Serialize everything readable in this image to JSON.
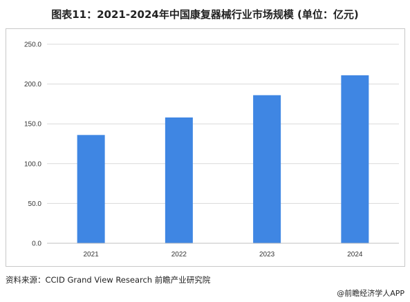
{
  "title": "图表11：2021-2024年中国康复器械行业市场规模 (单位：亿元)",
  "source": "资料来源：CCID Grand View Research 前瞻产业研究院",
  "brand": "@前瞻经济学人APP",
  "colors": {
    "bar": "#3f86e3",
    "grid": "#d9d9d9",
    "frame": "#c8c8c8"
  },
  "chart_data": {
    "type": "bar",
    "categories": [
      "2021",
      "2022",
      "2023",
      "2024"
    ],
    "values": [
      136,
      158,
      186,
      211
    ],
    "ylim": [
      0,
      250
    ],
    "yticks": [
      "0.0",
      "50.0",
      "100.0",
      "150.0",
      "200.0",
      "250.0"
    ],
    "grid": true,
    "legend": "none",
    "xlabel": "",
    "ylabel": ""
  }
}
